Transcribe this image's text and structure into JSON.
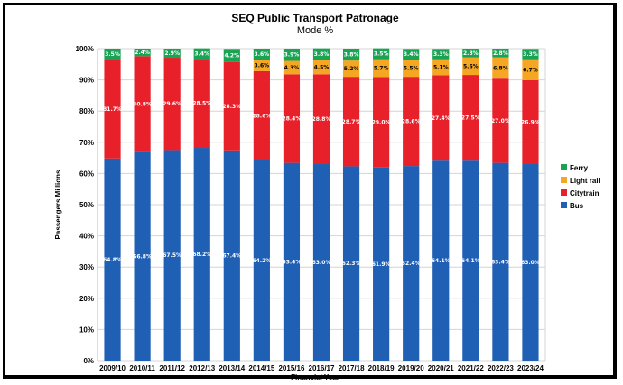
{
  "chart_data": {
    "type": "bar",
    "stacked": true,
    "title": "SEQ Public Transport Patronage",
    "subtitle": "Mode %",
    "xlabel": "Financial Year",
    "ylabel": "Passengers Millions",
    "ylim": [
      0,
      100
    ],
    "yticks": [
      "0%",
      "10%",
      "20%",
      "30%",
      "40%",
      "50%",
      "60%",
      "70%",
      "80%",
      "90%",
      "100%"
    ],
    "grid": true,
    "legend_position": "right",
    "categories": [
      "2009/10",
      "2010/11",
      "2011/12",
      "2012/13",
      "2013/14",
      "2014/15",
      "2015/16",
      "2016/17",
      "2017/18",
      "2018/19",
      "2019/20",
      "2020/21",
      "2021/22",
      "2022/23",
      "2023/24"
    ],
    "series": [
      {
        "name": "Bus",
        "color": "#1f5fb4",
        "values": [
          64.8,
          66.8,
          67.5,
          68.2,
          67.4,
          64.2,
          63.4,
          63.0,
          62.3,
          61.9,
          62.4,
          64.1,
          64.1,
          63.4,
          63.0
        ],
        "labels": [
          "64.8%",
          "66.8%",
          "67.5%",
          "68.2%",
          "67.4%",
          "64.2%",
          "63.4%",
          "63.0%",
          "62.3%",
          "61.9%",
          "62.4%",
          "64.1%",
          "64.1%",
          "63.4%",
          "63.0%"
        ]
      },
      {
        "name": "Citytrain",
        "color": "#e8202a",
        "values": [
          31.7,
          30.8,
          29.6,
          28.5,
          28.3,
          28.6,
          28.4,
          28.8,
          28.7,
          29.0,
          28.6,
          27.4,
          27.5,
          27.0,
          26.9
        ],
        "labels": [
          "31.7%",
          "30.8%",
          "29.6%",
          "28.5%",
          "28.3%",
          "28.6%",
          "28.4%",
          "28.8%",
          "28.7%",
          "29.0%",
          "28.6%",
          "27.4%",
          "27.5%",
          "27.0%",
          "26.9%"
        ]
      },
      {
        "name": "Light rail",
        "color": "#f5a623",
        "values": [
          0,
          0,
          0,
          0,
          0,
          3.6,
          4.3,
          4.5,
          5.2,
          5.7,
          5.5,
          5.1,
          5.6,
          6.8,
          6.7
        ],
        "labels": [
          "",
          "",
          "",
          "",
          "",
          "3.6%",
          "4.3%",
          "4.5%",
          "5.2%",
          "5.7%",
          "5.5%",
          "5.1%",
          "5.6%",
          "6.8%",
          "6.7%"
        ]
      },
      {
        "name": "Ferry",
        "color": "#1aa354",
        "values": [
          3.5,
          2.4,
          2.9,
          3.4,
          4.2,
          3.6,
          3.9,
          3.8,
          3.8,
          3.5,
          3.4,
          3.3,
          2.8,
          2.8,
          3.3
        ],
        "labels": [
          "3.5%",
          "2.4%",
          "2.9%",
          "3.4%",
          "4.2%",
          "3.6%",
          "3.9%",
          "3.8%",
          "3.8%",
          "3.5%",
          "3.4%",
          "3.3%",
          "2.8%",
          "2.8%",
          "3.3%"
        ]
      }
    ],
    "legend_order": [
      "Ferry",
      "Light rail",
      "Citytrain",
      "Bus"
    ]
  }
}
